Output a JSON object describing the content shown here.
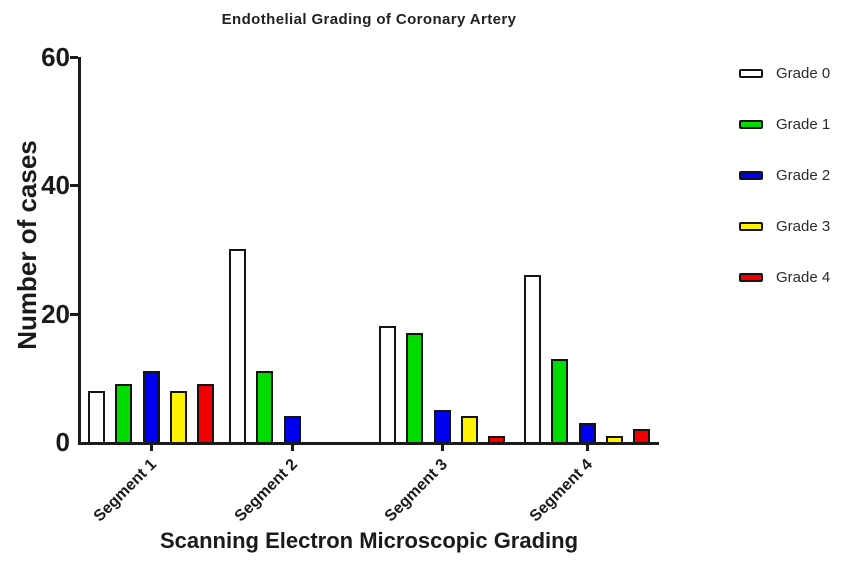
{
  "page": {
    "background": "#ffffff"
  },
  "chart_data": {
    "type": "bar",
    "title": "Endothelial Grading of Coronary Artery",
    "xlabel": "Scanning Electron Microscopic Grading",
    "ylabel": "Number of cases",
    "categories": [
      "Segment 1",
      "Segment 2",
      "Segment 3",
      "Segment 4"
    ],
    "series": [
      {
        "name": "Grade 0",
        "color": "#ffffff",
        "values": [
          8,
          30,
          18,
          26
        ]
      },
      {
        "name": "Grade 1",
        "color": "#00dc00",
        "values": [
          9,
          11,
          17,
          13
        ]
      },
      {
        "name": "Grade 2",
        "color": "#0000f0",
        "values": [
          11,
          4,
          5,
          3
        ]
      },
      {
        "name": "Grade 3",
        "color": "#fff200",
        "values": [
          8,
          0,
          4,
          1
        ]
      },
      {
        "name": "Grade 4",
        "color": "#f10000",
        "values": [
          9,
          0,
          1,
          2
        ]
      }
    ],
    "ylim": [
      0,
      60
    ],
    "yticks": [
      0,
      20,
      40,
      60
    ],
    "grid": false,
    "legend_position": "right",
    "axis_color": "#1a1a1a",
    "bar_border_color": "#141414"
  }
}
